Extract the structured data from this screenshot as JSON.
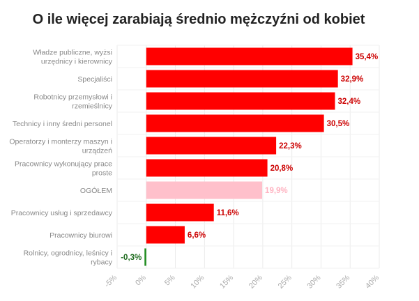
{
  "chart_data": {
    "type": "bar",
    "orientation": "horizontal",
    "title": "O ile więcej zarabiają średnio mężczyźni od kobiet",
    "xlabel": "",
    "ylabel": "",
    "xlim": [
      -5,
      40
    ],
    "x_ticks": [
      "-5%",
      "0%",
      "5%",
      "10%",
      "15%",
      "20%",
      "25%",
      "30%",
      "35%",
      "40%"
    ],
    "grid": true,
    "categories": [
      [
        "Władze publiczne, wyżsi",
        "urzędnicy i kierownicy"
      ],
      [
        "Specjaliści"
      ],
      [
        "Robotnicy przemysłowi i",
        "rzemieślnicy"
      ],
      [
        "Technicy i inny średni personel"
      ],
      [
        "Operatorzy i monterzy maszyn i",
        "urządzeń"
      ],
      [
        "Pracownicy wykonujący prace",
        "proste"
      ],
      [
        "OGÓŁEM"
      ],
      [
        "Pracownicy usług i sprzedawcy"
      ],
      [
        "Pracownicy biurowi"
      ],
      [
        "Rolnicy, ogrodnicy, leśnicy i",
        "rybacy"
      ]
    ],
    "values": [
      35.4,
      32.9,
      32.4,
      30.5,
      22.3,
      20.8,
      19.9,
      11.6,
      6.6,
      -0.3
    ],
    "value_labels": [
      "35,4%",
      "32,9%",
      "32,4%",
      "30,5%",
      "22,3%",
      "20,8%",
      "19,9%",
      "11,6%",
      "6,6%",
      "-0,3%"
    ],
    "colors": {
      "default": "#ff0000",
      "total": "#ffc0cb",
      "negative": "#1e8c1e",
      "default_label": "#cc0000",
      "total_label": "#ffb3c1",
      "negative_label": "#1e6b1e"
    },
    "highlight_index": 6
  }
}
